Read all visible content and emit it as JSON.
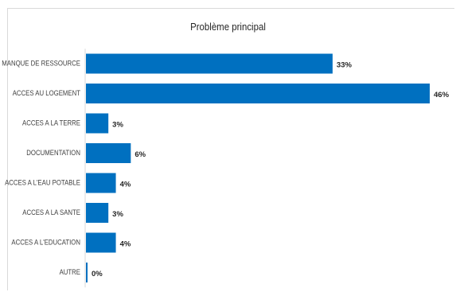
{
  "chart_data": {
    "type": "bar",
    "orientation": "horizontal",
    "title": "Problème principal",
    "categories": [
      "MANQUE DE RESSOURCE",
      "ACCES AU LOGEMENT",
      "ACCES A LA TERRE",
      "DOCUMENTATION",
      "ACCES A L'EAU POTABLE",
      "ACCES A LA SANTE",
      "ACCES A L'EDUCATION",
      "AUTRE"
    ],
    "values": [
      33,
      46,
      3,
      6,
      4,
      3,
      4,
      0
    ],
    "data_labels": [
      "33%",
      "46%",
      "3%",
      "6%",
      "4%",
      "3%",
      "4%",
      "0%"
    ],
    "unit": "%",
    "bar_color": "#0070c0",
    "xlim": [
      0,
      46
    ],
    "grid": false,
    "legend": "none"
  }
}
